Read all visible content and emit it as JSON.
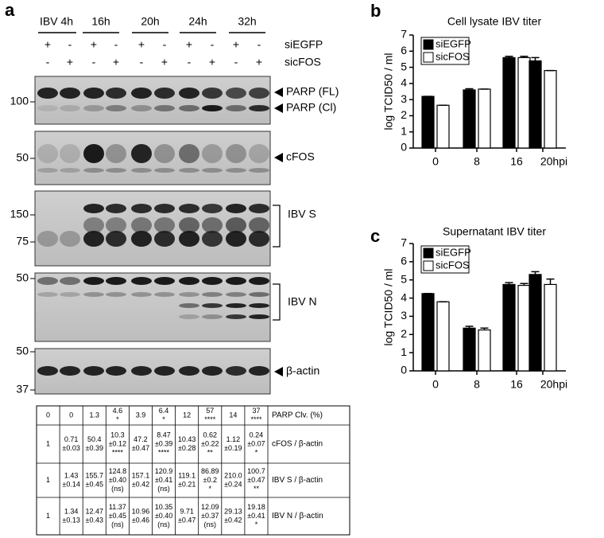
{
  "panel_labels": [
    "a",
    "b",
    "c"
  ],
  "blot": {
    "timepoints": [
      "IBV 4h",
      "16h",
      "20h",
      "24h",
      "32h"
    ],
    "treatments": [
      {
        "name": "siEGFP",
        "signs": [
          "+",
          "-",
          "+",
          "-",
          "+",
          "-",
          "+",
          "-",
          "+",
          "-"
        ]
      },
      {
        "name": "sicFOS",
        "signs": [
          "-",
          "+",
          "-",
          "+",
          "-",
          "+",
          "-",
          "+",
          "-",
          "+"
        ]
      }
    ],
    "panels": [
      {
        "labels": [
          "PARP (FL)",
          "PARP (Cl)"
        ],
        "markers": [
          "100"
        ]
      },
      {
        "labels": [
          "cFOS"
        ],
        "markers": [
          "50"
        ]
      },
      {
        "labels": [
          "IBV S"
        ],
        "markers": [
          "150",
          "75"
        ]
      },
      {
        "labels": [
          "IBV N"
        ],
        "markers": [
          "50"
        ]
      },
      {
        "labels": [
          "β-actin"
        ],
        "markers": [
          "50",
          "37"
        ]
      }
    ]
  },
  "table": {
    "rows": [
      {
        "label": "PARP Clv. (%)",
        "cells": [
          [
            "0"
          ],
          [
            "0"
          ],
          [
            "1.3"
          ],
          [
            "4.6",
            "*"
          ],
          [
            "3.9"
          ],
          [
            "6.4",
            "*"
          ],
          [
            "12"
          ],
          [
            "57",
            "****"
          ],
          [
            "14"
          ],
          [
            "37",
            "****"
          ]
        ]
      },
      {
        "label": "cFOS / β-actin",
        "cells": [
          [
            "1"
          ],
          [
            "0.71",
            "±0.03"
          ],
          [
            "50.4",
            "±0.39"
          ],
          [
            "10.3",
            "±0.12",
            "****"
          ],
          [
            "47.2",
            "±0.47"
          ],
          [
            "8.47",
            "±0.39",
            "****"
          ],
          [
            "10.43",
            "±0.28"
          ],
          [
            "0.62",
            "±0.22",
            "**"
          ],
          [
            "1.12",
            "±0.19"
          ],
          [
            "0.24",
            "±0.07",
            "*"
          ]
        ]
      },
      {
        "label": "IBV S / β-actin",
        "cells": [
          [
            "1"
          ],
          [
            "1.43",
            "±0.14"
          ],
          [
            "155.7",
            "±0.45"
          ],
          [
            "124.8",
            "±0.40",
            "(ns)"
          ],
          [
            "157.1",
            "±0.42"
          ],
          [
            "120.9",
            "±0.41",
            "(ns)"
          ],
          [
            "119.1",
            "±0.21"
          ],
          [
            "86.89",
            "±0.2",
            "*"
          ],
          [
            "210.0",
            "±0.24"
          ],
          [
            "100.7",
            "±0.47",
            "**"
          ]
        ]
      },
      {
        "label": "IBV N / β-actin",
        "cells": [
          [
            "1"
          ],
          [
            "1.34",
            "±0.13"
          ],
          [
            "12.47",
            "±0.43"
          ],
          [
            "11.37",
            "±0.45",
            "(ns)"
          ],
          [
            "10.96",
            "±0.46"
          ],
          [
            "10.35",
            "±0.40",
            "(ns)"
          ],
          [
            "9.71",
            "±0.47"
          ],
          [
            "12.09",
            "±0.37",
            "(ns)"
          ],
          [
            "29.13",
            "±0.42"
          ],
          [
            "19.18",
            "±0.41",
            "*"
          ]
        ]
      }
    ]
  },
  "chart_data": [
    {
      "type": "bar",
      "title": "Cell lysate IBV titer",
      "y_label": "log TCID50 / ml",
      "categories": [
        "0",
        "8",
        "16",
        "20hpi"
      ],
      "series": [
        {
          "name": "siEGFP",
          "color": "#000000",
          "values": [
            3.2,
            3.6,
            5.6,
            5.4
          ],
          "errors": [
            0,
            0.07,
            0.08,
            0.2
          ]
        },
        {
          "name": "sicFOS",
          "color": "#ffffff",
          "values": [
            2.65,
            3.65,
            5.6,
            4.8
          ],
          "errors": [
            0,
            0,
            0.08,
            0
          ]
        }
      ],
      "ylim": [
        0,
        7
      ],
      "yticks": [
        0,
        1,
        2,
        3,
        4,
        5,
        6,
        7
      ],
      "legend": "top-left"
    },
    {
      "type": "bar",
      "title": "Supernatant IBV titer",
      "y_label": "log TCID50 / ml",
      "categories": [
        "0",
        "8",
        "16",
        "20hpi"
      ],
      "series": [
        {
          "name": "siEGFP",
          "color": "#000000",
          "values": [
            4.25,
            2.35,
            4.75,
            5.3
          ],
          "errors": [
            0,
            0.1,
            0.1,
            0.15
          ]
        },
        {
          "name": "sicFOS",
          "color": "#ffffff",
          "values": [
            3.8,
            2.25,
            4.7,
            4.75
          ],
          "errors": [
            0,
            0.1,
            0.1,
            0.3
          ]
        }
      ],
      "ylim": [
        0,
        7
      ],
      "yticks": [
        0,
        1,
        2,
        3,
        4,
        5,
        6,
        7
      ],
      "legend": "top-left"
    }
  ]
}
